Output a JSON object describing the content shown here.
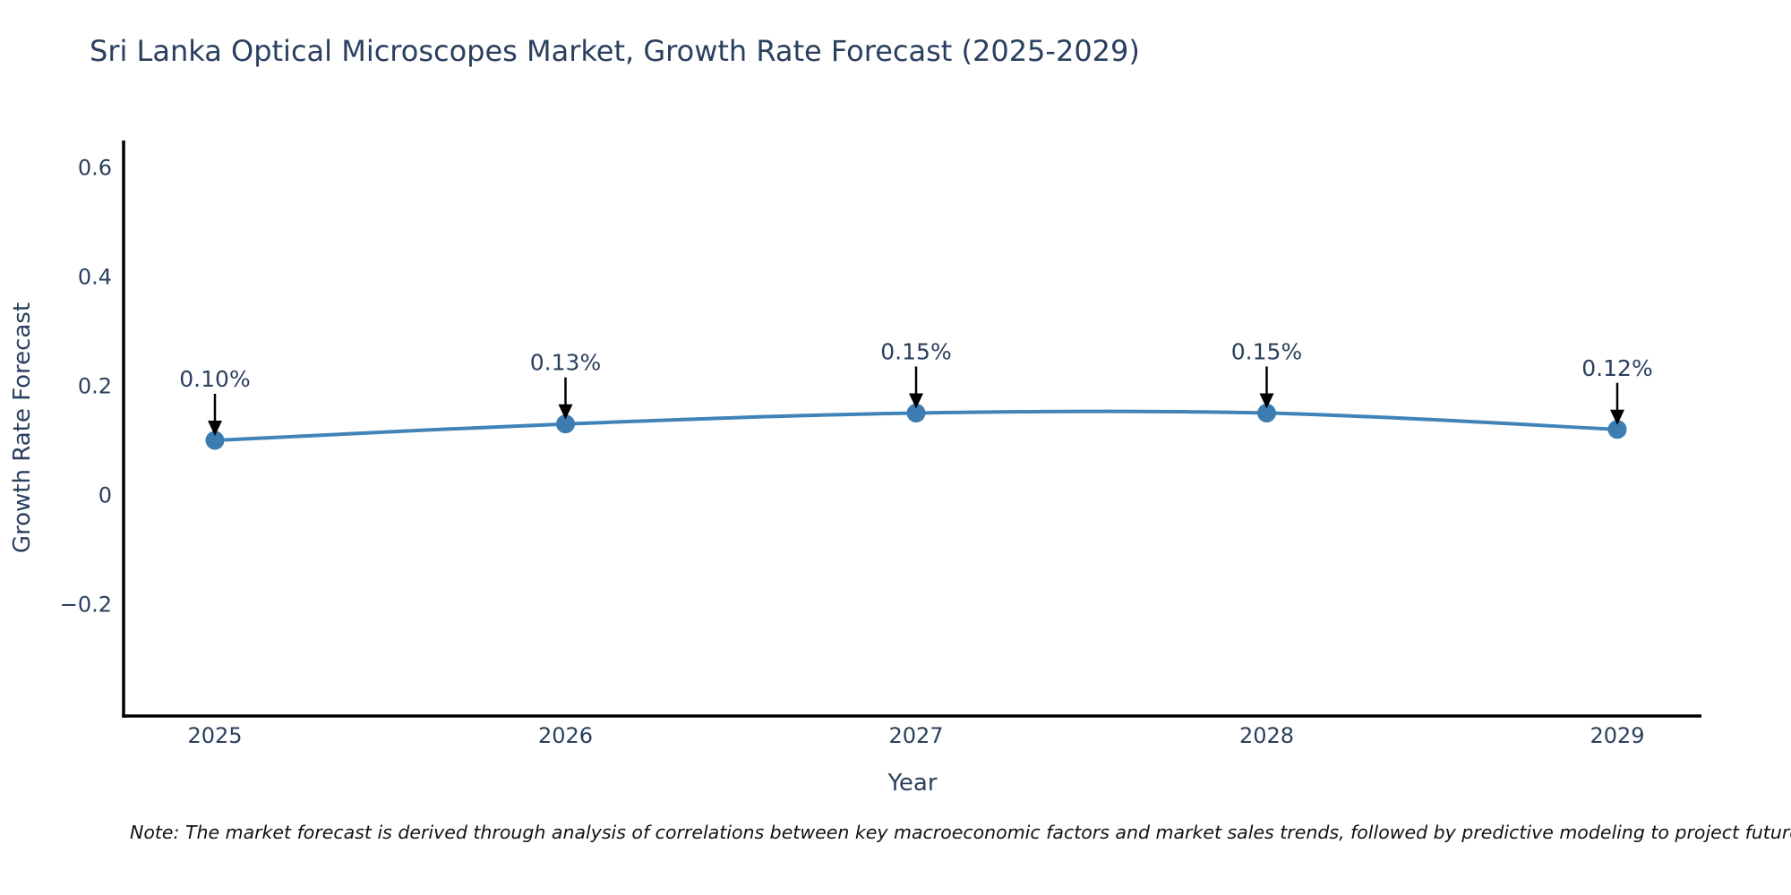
{
  "title": "Sri Lanka Optical Microscopes Market, Growth Rate Forecast (2025-2029)",
  "note": "Note: The market forecast is derived through analysis of correlations between key macroeconomic factors and market sales trends, followed by predictive modeling to project future sales.",
  "chart_data": {
    "type": "line",
    "line_shape": "spline",
    "grid": false,
    "legend": "none",
    "title": "Sri Lanka Optical Microscopes Market, Growth Rate Forecast (2025-2029)",
    "xlabel": "Year",
    "ylabel": "Growth Rate Forecast",
    "x": [
      2025,
      2026,
      2027,
      2028,
      2029
    ],
    "series": [
      {
        "name": "Growth Rate Forecast",
        "values": [
          0.1,
          0.13,
          0.15,
          0.15,
          0.12
        ]
      }
    ],
    "point_labels": [
      "0.10%",
      "0.13%",
      "0.15%",
      "0.15%",
      "0.12%"
    ],
    "x_ticks": [
      {
        "value": 2025,
        "label": "2025"
      },
      {
        "value": 2026,
        "label": "2026"
      },
      {
        "value": 2027,
        "label": "2027"
      },
      {
        "value": 2028,
        "label": "2028"
      },
      {
        "value": 2029,
        "label": "2029"
      }
    ],
    "y_ticks": [
      {
        "value": 0.6,
        "label": "0.6"
      },
      {
        "value": 0.4,
        "label": "0.4"
      },
      {
        "value": 0.2,
        "label": "0.2"
      },
      {
        "value": 0,
        "label": "0"
      },
      {
        "value": -0.2,
        "label": "−0.2"
      }
    ],
    "ylim": [
      -0.4,
      0.65
    ],
    "colors": {
      "line": "#4083b8",
      "marker": "#3c7cb0",
      "annotation_arrow": "#000000",
      "axis": "#000000",
      "text": "#2a3f5f"
    }
  }
}
